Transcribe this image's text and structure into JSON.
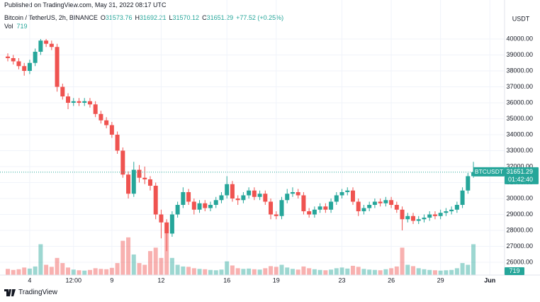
{
  "chart_data": {
    "type": "candlestick",
    "published": "Published on TradingView.com, May 31, 2022 08:17 UTC",
    "title": "Bitcoin / TetherUS, 2h, BINANCE",
    "legend": {
      "labels": [
        "O",
        "H",
        "L",
        "C"
      ],
      "values": [
        31573.76,
        31692.21,
        31570.12,
        31651.29
      ],
      "change": "+77.52 (+0.25%)"
    },
    "volume_label": "Vol",
    "volume_value": 719,
    "currency": "USDT",
    "symbol": "BTCUSDT",
    "last_price": 31651.29,
    "countdown": "01:42:40",
    "brand": "TradingView",
    "up_color": "#26a69a",
    "down_color": "#ef5350",
    "ylim": [
      25200,
      41000
    ],
    "yticks": [
      {
        "value": 26000,
        "label": "26000.00"
      },
      {
        "value": 27000,
        "label": "27000.00"
      },
      {
        "value": 28000,
        "label": "28000.00"
      },
      {
        "value": 29000,
        "label": "29000.00"
      },
      {
        "value": 30000,
        "label": "30000.00"
      },
      {
        "value": 31000,
        "label": "31000.00"
      },
      {
        "value": 32000,
        "label": "32000.00"
      },
      {
        "value": 33000,
        "label": "33000.00"
      },
      {
        "value": 34000,
        "label": "34000.00"
      },
      {
        "value": 35000,
        "label": "35000.00"
      },
      {
        "value": 36000,
        "label": "36000.00"
      },
      {
        "value": 37000,
        "label": "37000.00"
      },
      {
        "value": 38000,
        "label": "38000.00"
      },
      {
        "value": 39000,
        "label": "39000.00"
      },
      {
        "value": 40000,
        "label": "40000.00"
      }
    ],
    "categories": [
      null,
      null,
      null,
      null,
      "4",
      null,
      null,
      null,
      null,
      null,
      null,
      null,
      "12:00",
      null,
      null,
      null,
      null,
      null,
      null,
      "9",
      null,
      null,
      null,
      null,
      null,
      null,
      null,
      null,
      "12",
      null,
      null,
      null,
      null,
      null,
      null,
      null,
      null,
      null,
      null,
      null,
      "16",
      null,
      null,
      null,
      null,
      null,
      null,
      null,
      null,
      "19",
      null,
      null,
      null,
      null,
      null,
      null,
      null,
      null,
      null,
      null,
      null,
      "23",
      null,
      null,
      null,
      null,
      null,
      null,
      null,
      null,
      "26",
      null,
      null,
      null,
      null,
      null,
      null,
      null,
      null,
      "29",
      null,
      null,
      null,
      null,
      null,
      null,
      null,
      null,
      "Jun"
    ],
    "open": [
      38900,
      38800,
      38600,
      38300,
      38000,
      38500,
      39200,
      39900,
      39700,
      39500,
      37000,
      36400,
      36000,
      36100,
      36000,
      36100,
      35900,
      35300,
      34900,
      34600,
      34000,
      33000,
      31500,
      30300,
      31800,
      31300,
      31200,
      30800,
      29000,
      28500,
      27800,
      29000,
      29600,
      30400,
      29800,
      29300,
      29700,
      29400,
      29600,
      29900,
      30200,
      30900,
      30000,
      29900,
      30200,
      30500,
      30100,
      30300,
      29800,
      29000,
      28900,
      29900,
      30300,
      30400,
      30200,
      29200,
      29000,
      29300,
      29500,
      29300,
      29800,
      30200,
      30400,
      30500,
      29800,
      29200,
      29400,
      29600,
      29800,
      29700,
      29900,
      29600,
      29300,
      28700,
      28900,
      28600,
      28700,
      28800,
      29000,
      28900,
      29100,
      29200,
      29300,
      29600,
      30500,
      31400,
      null,
      null,
      null
    ],
    "high": [
      39100,
      39000,
      38800,
      38500,
      38700,
      39400,
      40000,
      40000,
      39900,
      39700,
      37200,
      36600,
      36300,
      36300,
      36300,
      36300,
      36100,
      35500,
      35100,
      34800,
      34200,
      33200,
      31700,
      32300,
      32100,
      32000,
      31400,
      31000,
      29300,
      28700,
      29200,
      29800,
      30700,
      30600,
      30000,
      29900,
      29900,
      29800,
      30100,
      30400,
      31400,
      31100,
      30200,
      30400,
      30700,
      30700,
      30500,
      30500,
      30000,
      29200,
      30100,
      30600,
      30700,
      30600,
      30400,
      29400,
      29500,
      29700,
      29700,
      30000,
      30400,
      30600,
      30700,
      30700,
      30000,
      29600,
      29800,
      30000,
      30000,
      30100,
      30100,
      29800,
      29500,
      29100,
      29100,
      28900,
      29000,
      29200,
      29200,
      29300,
      29400,
      29500,
      29800,
      30700,
      31600,
      32300,
      null,
      null,
      null
    ],
    "low": [
      38600,
      38400,
      38100,
      37700,
      37800,
      38300,
      39000,
      39500,
      39300,
      36700,
      36200,
      35600,
      35800,
      35800,
      35800,
      35700,
      35100,
      34700,
      34400,
      33800,
      32800,
      31300,
      30000,
      30100,
      31000,
      30900,
      30500,
      28700,
      27500,
      26700,
      27600,
      28800,
      29400,
      29600,
      29000,
      29100,
      29200,
      29200,
      29400,
      29700,
      30000,
      29800,
      29600,
      29700,
      30000,
      29900,
      29900,
      29600,
      28700,
      28700,
      28700,
      29700,
      30100,
      30000,
      29000,
      28800,
      28800,
      29100,
      29100,
      29100,
      29600,
      30000,
      30200,
      29600,
      28900,
      29000,
      29200,
      29400,
      29500,
      29500,
      29400,
      29100,
      28000,
      28500,
      28400,
      28400,
      28500,
      28600,
      28700,
      28700,
      28900,
      29000,
      29100,
      29400,
      30300,
      31300,
      null,
      null,
      null
    ],
    "close": [
      38800,
      38600,
      38300,
      38000,
      38500,
      39200,
      39900,
      39700,
      39500,
      37000,
      36400,
      36000,
      36100,
      36000,
      36100,
      35900,
      35300,
      34900,
      34600,
      34000,
      33000,
      31500,
      30300,
      31800,
      31300,
      31200,
      30800,
      29000,
      28500,
      27800,
      29000,
      29600,
      30400,
      29800,
      29300,
      29700,
      29400,
      29600,
      29900,
      30200,
      30900,
      30000,
      29900,
      30200,
      30500,
      30100,
      30300,
      29800,
      29000,
      28900,
      29900,
      30300,
      30400,
      30200,
      29200,
      29000,
      29300,
      29500,
      29300,
      29800,
      30200,
      30400,
      30500,
      29800,
      29200,
      29400,
      29600,
      29800,
      29700,
      29900,
      29600,
      29300,
      28700,
      28900,
      28600,
      28700,
      28800,
      29000,
      28900,
      29100,
      29200,
      29300,
      29600,
      30500,
      31400,
      31651.29,
      null,
      null,
      null
    ],
    "volume": [
      1800,
      1500,
      1700,
      2200,
      1900,
      2500,
      9000,
      3000,
      2400,
      5000,
      3500,
      2200,
      1600,
      1400,
      1300,
      1500,
      2000,
      1800,
      1700,
      2100,
      3500,
      10000,
      11000,
      6000,
      3500,
      3000,
      7000,
      8000,
      5000,
      12000,
      5000,
      3000,
      2500,
      2400,
      2000,
      1800,
      1700,
      1500,
      1400,
      1600,
      4000,
      2800,
      2000,
      1800,
      1900,
      1700,
      1600,
      2000,
      2600,
      2400,
      3000,
      2200,
      1800,
      1600,
      2500,
      2000,
      1700,
      1500,
      1400,
      1600,
      2000,
      2200,
      1900,
      2700,
      2400,
      1800,
      1600,
      1500,
      1400,
      1700,
      2000,
      2500,
      8000,
      3000,
      2600,
      2000,
      1700,
      1500,
      1400,
      1300,
      1400,
      1500,
      2000,
      3500,
      3000,
      9000,
      null,
      null,
      null
    ]
  }
}
